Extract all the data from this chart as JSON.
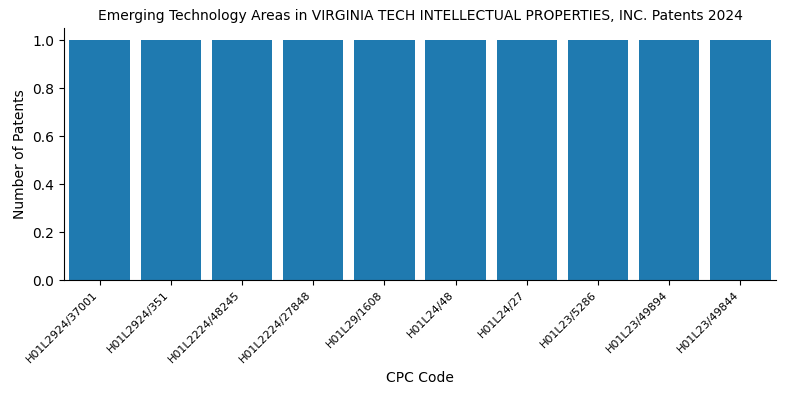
{
  "title": "Emerging Technology Areas in VIRGINIA TECH INTELLECTUAL PROPERTIES, INC. Patents 2024",
  "xlabel": "CPC Code",
  "ylabel": "Number of Patents",
  "categories": [
    "H01L2924/37001",
    "H01L2924/351",
    "H01L2224/48245",
    "H01L2224/27848",
    "H01L29/1608",
    "H01L24/48",
    "H01L24/27",
    "H01L23/5286",
    "H01L23/49894",
    "H01L23/49844"
  ],
  "values": [
    1,
    1,
    1,
    1,
    1,
    1,
    1,
    1,
    1,
    1
  ],
  "bar_color": "#1f7ab0",
  "ylim": [
    0,
    1.05
  ],
  "yticks": [
    0.0,
    0.2,
    0.4,
    0.6,
    0.8,
    1.0
  ],
  "figsize": [
    8.0,
    4.0
  ],
  "dpi": 100,
  "title_fontsize": 10,
  "bar_width": 0.85
}
